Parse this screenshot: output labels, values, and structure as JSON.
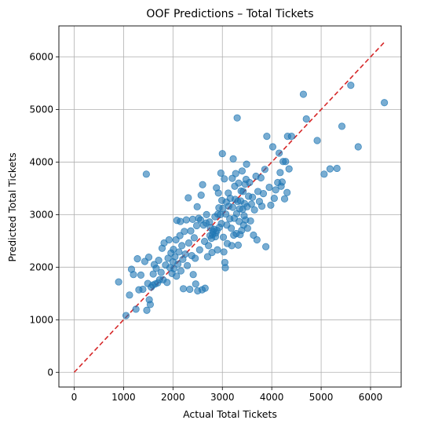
{
  "chart_data": {
    "type": "scatter",
    "title": "OOF Predictions – Total Tickets",
    "xlabel": "Actual Total Tickets",
    "ylabel": "Predicted Total Tickets",
    "xlim": [
      -310,
      6620
    ],
    "ylim": [
      -280,
      6590
    ],
    "xticks": [
      0,
      1000,
      2000,
      3000,
      4000,
      5000,
      6000
    ],
    "yticks": [
      0,
      1000,
      2000,
      3000,
      4000,
      5000,
      6000
    ],
    "grid": true,
    "point_color": "#1f77b4",
    "reference_line": {
      "label": "y = x",
      "from": 0,
      "to": 6280,
      "color": "#d62728",
      "style": "dashed"
    },
    "series": [
      {
        "points": [
          [
            900,
            1720
          ],
          [
            1050,
            1080
          ],
          [
            1120,
            1470
          ],
          [
            1160,
            1960
          ],
          [
            1200,
            1860
          ],
          [
            1250,
            1200
          ],
          [
            1280,
            2160
          ],
          [
            1310,
            1570
          ],
          [
            1350,
            1850
          ],
          [
            1390,
            1580
          ],
          [
            1430,
            2110
          ],
          [
            1460,
            3770
          ],
          [
            1470,
            1180
          ],
          [
            1490,
            1690
          ],
          [
            1510,
            2190
          ],
          [
            1520,
            1380
          ],
          [
            1540,
            1290
          ],
          [
            1560,
            1620
          ],
          [
            1590,
            1660
          ],
          [
            1600,
            1870
          ],
          [
            1620,
            2050
          ],
          [
            1640,
            1680
          ],
          [
            1660,
            1980
          ],
          [
            1690,
            1700
          ],
          [
            1710,
            2130
          ],
          [
            1730,
            1760
          ],
          [
            1760,
            1900
          ],
          [
            1780,
            2360
          ],
          [
            1800,
            1760
          ],
          [
            1820,
            2460
          ],
          [
            1850,
            2040
          ],
          [
            1880,
            1710
          ],
          [
            1900,
            2170
          ],
          [
            1920,
            2520
          ],
          [
            1940,
            1990
          ],
          [
            1960,
            2270
          ],
          [
            1980,
            1880
          ],
          [
            2000,
            2100
          ],
          [
            2010,
            2340
          ],
          [
            2020,
            1970
          ],
          [
            2040,
            2200
          ],
          [
            2060,
            2520
          ],
          [
            2070,
            1830
          ],
          [
            2080,
            2890
          ],
          [
            2100,
            2060
          ],
          [
            2120,
            2290
          ],
          [
            2140,
            2600
          ],
          [
            2150,
            2870
          ],
          [
            2160,
            1930
          ],
          [
            2180,
            2410
          ],
          [
            2200,
            2150
          ],
          [
            2210,
            1590
          ],
          [
            2230,
            2680
          ],
          [
            2250,
            2250
          ],
          [
            2270,
            2900
          ],
          [
            2290,
            2030
          ],
          [
            2310,
            3320
          ],
          [
            2320,
            2460
          ],
          [
            2340,
            1580
          ],
          [
            2360,
            2690
          ],
          [
            2380,
            2220
          ],
          [
            2400,
            2910
          ],
          [
            2410,
            1860
          ],
          [
            2430,
            2560
          ],
          [
            2450,
            2170
          ],
          [
            2460,
            1680
          ],
          [
            2480,
            2790
          ],
          [
            2490,
            3150
          ],
          [
            2500,
            1550
          ],
          [
            2520,
            2930
          ],
          [
            2540,
            2330
          ],
          [
            2560,
            2900
          ],
          [
            2570,
            3370
          ],
          [
            2590,
            1570
          ],
          [
            2600,
            3570
          ],
          [
            2620,
            2800
          ],
          [
            2640,
            2490
          ],
          [
            2650,
            1600
          ],
          [
            2670,
            2840
          ],
          [
            2680,
            3000
          ],
          [
            2700,
            2200
          ],
          [
            2720,
            2410
          ],
          [
            2740,
            2860
          ],
          [
            2750,
            2600
          ],
          [
            2760,
            2750
          ],
          [
            2780,
            2550
          ],
          [
            2790,
            2280
          ],
          [
            2800,
            2620
          ],
          [
            2810,
            2680
          ],
          [
            2830,
            2720
          ],
          [
            2850,
            2960
          ],
          [
            2860,
            2580
          ],
          [
            2870,
            2650
          ],
          [
            2880,
            3510
          ],
          [
            2890,
            2700
          ],
          [
            2900,
            2330
          ],
          [
            2910,
            3010
          ],
          [
            2920,
            3410
          ],
          [
            2930,
            3130
          ],
          [
            2940,
            2760
          ],
          [
            2960,
            3000
          ],
          [
            2970,
            3790
          ],
          [
            2980,
            2830
          ],
          [
            2990,
            3270
          ],
          [
            3000,
            4160
          ],
          [
            3010,
            3120
          ],
          [
            3020,
            2570
          ],
          [
            3030,
            2290
          ],
          [
            3040,
            3680
          ],
          [
            3050,
            2090
          ],
          [
            3060,
            1990
          ],
          [
            3070,
            3010
          ],
          [
            3080,
            3240
          ],
          [
            3090,
            2800
          ],
          [
            3100,
            2450
          ],
          [
            3120,
            3410
          ],
          [
            3130,
            3160
          ],
          [
            3150,
            2920
          ],
          [
            3160,
            3310
          ],
          [
            3180,
            2740
          ],
          [
            3190,
            2410
          ],
          [
            3200,
            3690
          ],
          [
            3210,
            3140
          ],
          [
            3220,
            4060
          ],
          [
            3230,
            2610
          ],
          [
            3240,
            2930
          ],
          [
            3250,
            3540
          ],
          [
            3260,
            3290
          ],
          [
            3270,
            3780
          ],
          [
            3280,
            2640
          ],
          [
            3290,
            3020
          ],
          [
            3300,
            4840
          ],
          [
            3310,
            3250
          ],
          [
            3320,
            2420
          ],
          [
            3330,
            3600
          ],
          [
            3340,
            2870
          ],
          [
            3350,
            3110
          ],
          [
            3360,
            2620
          ],
          [
            3370,
            3260
          ],
          [
            3380,
            3450
          ],
          [
            3390,
            2700
          ],
          [
            3400,
            3830
          ],
          [
            3410,
            3100
          ],
          [
            3420,
            3440
          ],
          [
            3430,
            2800
          ],
          [
            3440,
            2980
          ],
          [
            3450,
            3210
          ],
          [
            3460,
            3580
          ],
          [
            3470,
            2900
          ],
          [
            3480,
            3670
          ],
          [
            3490,
            3960
          ],
          [
            3500,
            3150
          ],
          [
            3510,
            2740
          ],
          [
            3530,
            3350
          ],
          [
            3550,
            3610
          ],
          [
            3570,
            2880
          ],
          [
            3590,
            3200
          ],
          [
            3610,
            3330
          ],
          [
            3630,
            2610
          ],
          [
            3650,
            3090
          ],
          [
            3680,
            3730
          ],
          [
            3700,
            2520
          ],
          [
            3720,
            3440
          ],
          [
            3750,
            3250
          ],
          [
            3780,
            3700
          ],
          [
            3800,
            3160
          ],
          [
            3830,
            3400
          ],
          [
            3860,
            3860
          ],
          [
            3880,
            2390
          ],
          [
            3900,
            4490
          ],
          [
            3950,
            3520
          ],
          [
            3980,
            3180
          ],
          [
            4020,
            4290
          ],
          [
            4050,
            3310
          ],
          [
            4080,
            3470
          ],
          [
            4120,
            3610
          ],
          [
            4150,
            4170
          ],
          [
            4170,
            3800
          ],
          [
            4190,
            3540
          ],
          [
            4210,
            3620
          ],
          [
            4230,
            4010
          ],
          [
            4260,
            3300
          ],
          [
            4280,
            4010
          ],
          [
            4310,
            3420
          ],
          [
            4320,
            4490
          ],
          [
            4350,
            3870
          ],
          [
            4400,
            4490
          ],
          [
            4920,
            4410
          ],
          [
            4640,
            5290
          ],
          [
            4700,
            4820
          ],
          [
            5060,
            3770
          ],
          [
            5180,
            3870
          ],
          [
            5320,
            3880
          ],
          [
            5420,
            4680
          ],
          [
            5600,
            5460
          ],
          [
            5750,
            4290
          ],
          [
            6280,
            5130
          ]
        ]
      }
    ]
  }
}
